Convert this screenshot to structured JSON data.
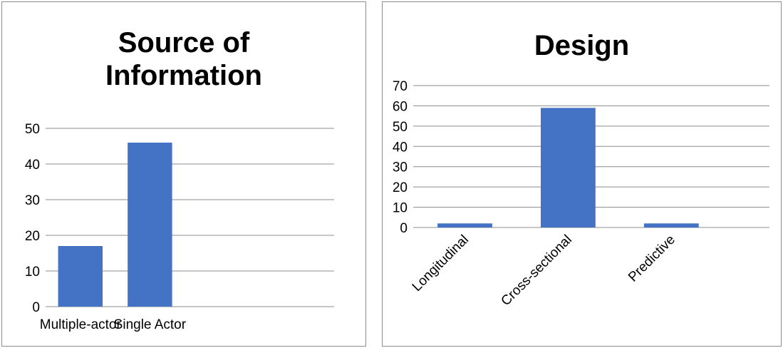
{
  "chart_data": [
    {
      "type": "bar",
      "title": "Source of Information",
      "categories": [
        "Multiple-actor",
        "Single Actor"
      ],
      "values": [
        17,
        46
      ],
      "ylim": [
        0,
        50
      ],
      "yticks": [
        0,
        10,
        20,
        30,
        40,
        50
      ],
      "grid": true,
      "color": "#4472C4"
    },
    {
      "type": "bar",
      "title": "Design",
      "categories": [
        "Longitudinal",
        "Cross-sectional",
        "Predictive"
      ],
      "values": [
        2,
        59,
        2
      ],
      "ylim": [
        0,
        70
      ],
      "yticks": [
        0,
        10,
        20,
        30,
        40,
        50,
        60,
        70
      ],
      "grid": true,
      "color": "#4472C4"
    }
  ]
}
